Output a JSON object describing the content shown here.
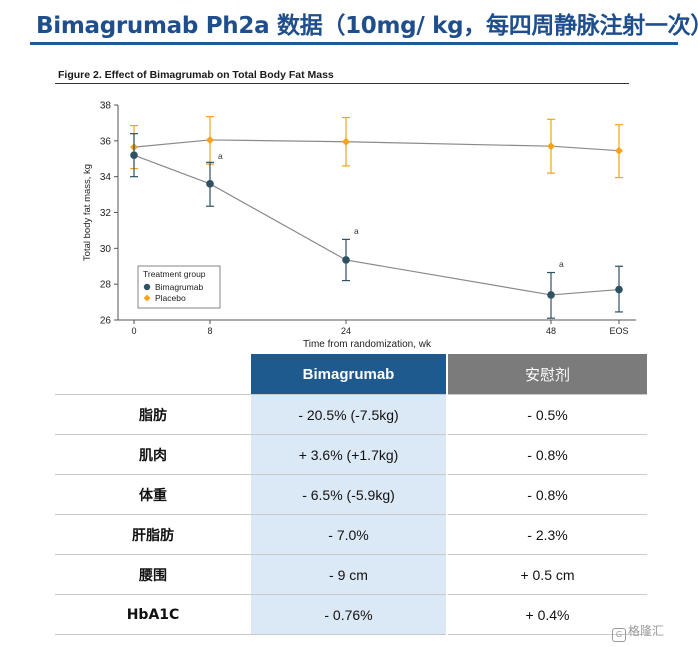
{
  "slide": {
    "title": "Bimagrumab Ph2a 数据（10mg/ kg，每四周静脉注射一次）"
  },
  "figure": {
    "title": "Figure 2. Effect of Bimagrumab on Total Body Fat Mass"
  },
  "chart_data": {
    "type": "line",
    "title": "",
    "xlabel": "Time from randomization, wk",
    "ylabel": "Total body fat mass, kg",
    "x": [
      0,
      8,
      24,
      48,
      "EOS"
    ],
    "x_ticks": [
      "0",
      "8",
      "24",
      "48",
      "EOS"
    ],
    "ylim": [
      26,
      38
    ],
    "y_ticks": [
      26,
      28,
      30,
      32,
      34,
      36,
      38
    ],
    "grid": false,
    "legend": {
      "title": "Treatment group",
      "position": "bottom-left"
    },
    "series": [
      {
        "name": "Bimagrumab",
        "color": "#2e5163",
        "marker": "circle",
        "values": [
          35.2,
          33.6,
          29.35,
          27.4,
          27.7
        ],
        "err_low": [
          34.0,
          32.35,
          28.2,
          26.1,
          26.45
        ],
        "err_high": [
          36.4,
          34.8,
          30.5,
          28.65,
          29.0
        ]
      },
      {
        "name": "Placebo",
        "color": "#f5a31a",
        "marker": "diamond",
        "values": [
          35.65,
          36.05,
          35.95,
          35.7,
          35.45
        ],
        "err_low": [
          34.45,
          34.7,
          34.6,
          34.2,
          33.95
        ],
        "err_high": [
          36.85,
          37.35,
          37.3,
          37.2,
          36.9
        ]
      }
    ],
    "annotations": [
      {
        "x": 8,
        "y": 35.0,
        "text": "a"
      },
      {
        "x": 24,
        "y": 30.8,
        "text": "a"
      },
      {
        "x": 48,
        "y": 28.95,
        "text": "a"
      }
    ]
  },
  "table": {
    "headers": [
      "",
      "Bimagrumab",
      "安慰剂"
    ],
    "rows": [
      [
        "脂肪",
        "- 20.5% (-7.5kg)",
        "- 0.5%"
      ],
      [
        "肌肉",
        "+ 3.6% (+1.7kg)",
        "- 0.8%"
      ],
      [
        "体重",
        "- 6.5% (-5.9kg)",
        "- 0.8%"
      ],
      [
        "肝脂肪",
        "- 7.0%",
        "- 2.3%"
      ],
      [
        "腰围",
        "- 9 cm",
        "+ 0.5 cm"
      ],
      [
        "HbA1C",
        "- 0.76%",
        "+ 0.4%"
      ]
    ]
  },
  "watermark": {
    "text": "格隆汇",
    "logo": "G"
  }
}
